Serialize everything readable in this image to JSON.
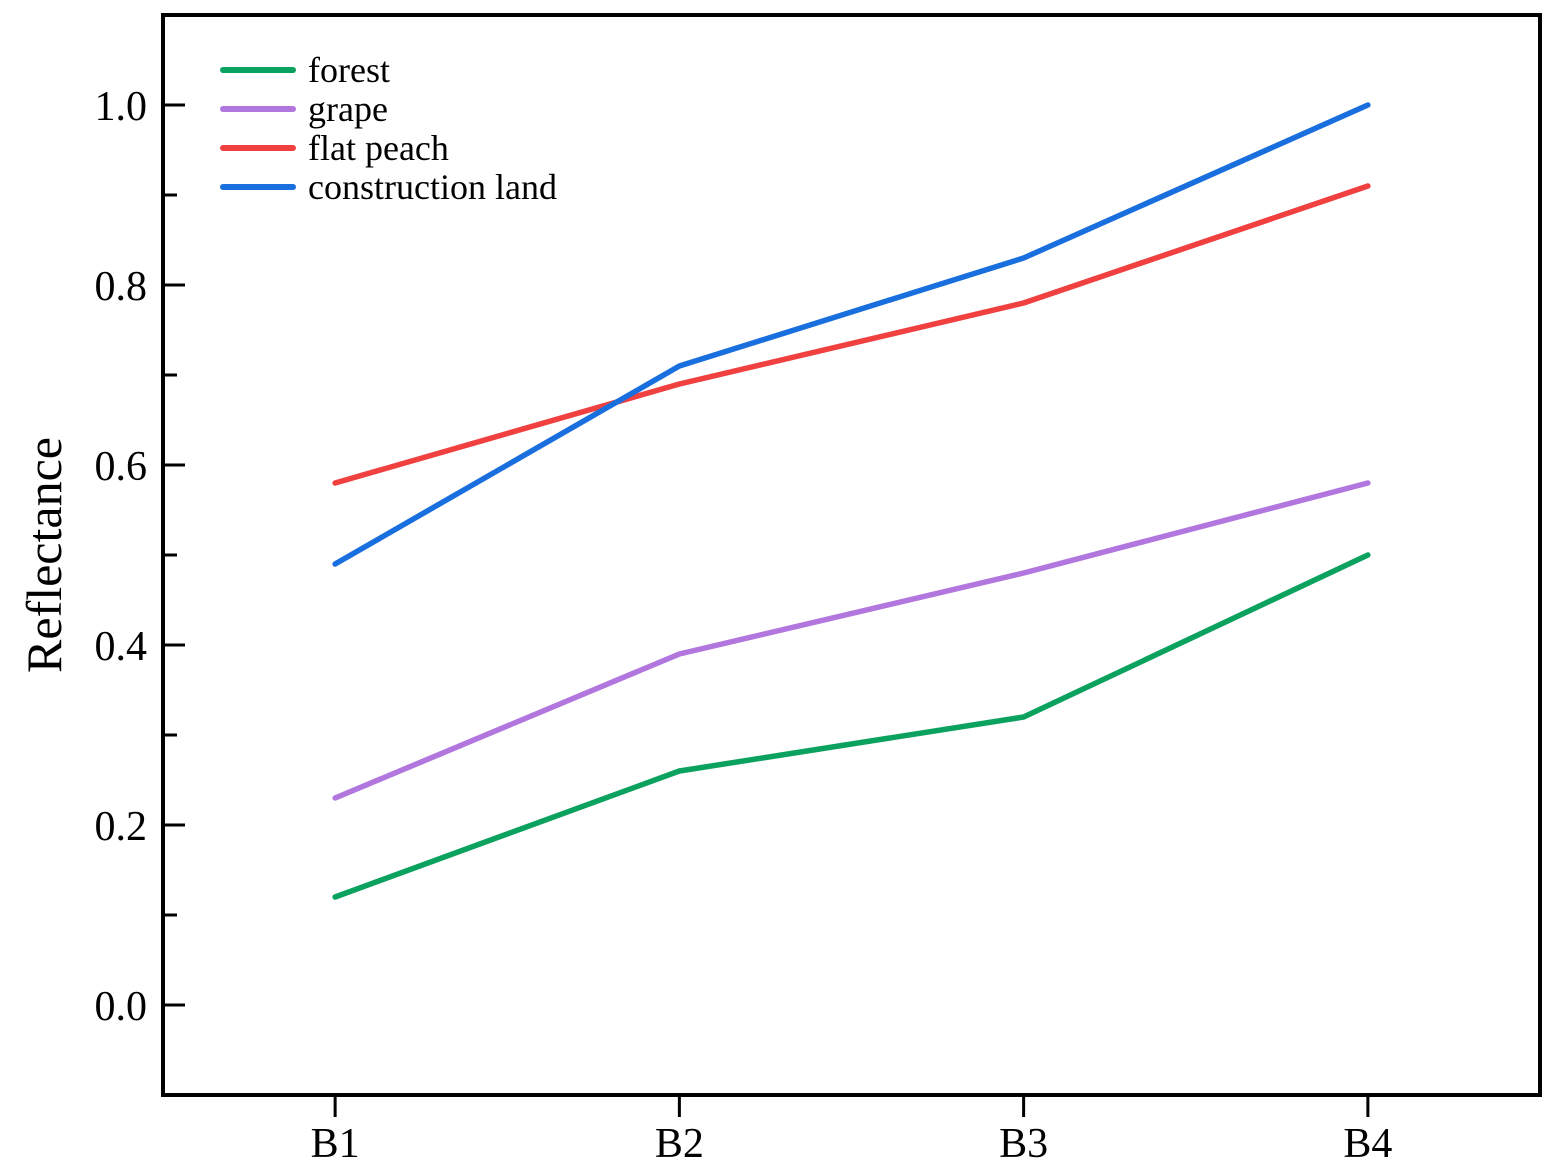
{
  "page": {
    "background": "#ffffff",
    "text_color": "#000000"
  },
  "chart_data": {
    "type": "line",
    "title": "",
    "xlabel": "",
    "ylabel": "Reflectance",
    "categories": [
      "B1",
      "B2",
      "B3",
      "B4"
    ],
    "series": [
      {
        "name": "forest",
        "color": "#0BA15E",
        "values": [
          0.12,
          0.26,
          0.32,
          0.5
        ]
      },
      {
        "name": "grape",
        "color": "#B177DE",
        "values": [
          0.23,
          0.39,
          0.48,
          0.58
        ]
      },
      {
        "name": "flat peach",
        "color": "#F14040",
        "values": [
          0.58,
          0.69,
          0.78,
          0.91
        ]
      },
      {
        "name": "construction land",
        "color": "#1A6FDF",
        "values": [
          0.49,
          0.71,
          0.83,
          1.0
        ]
      }
    ],
    "ylim": [
      -0.1,
      1.1
    ],
    "yticks_major": [
      0.0,
      0.2,
      0.4,
      0.6,
      0.8,
      1.0
    ],
    "yticks_minor": [
      0.1,
      0.3,
      0.5,
      0.7,
      0.9
    ],
    "ytick_format_decimals": 1,
    "grid": false,
    "legend_position": "top-left",
    "axis_color": "#000000"
  }
}
